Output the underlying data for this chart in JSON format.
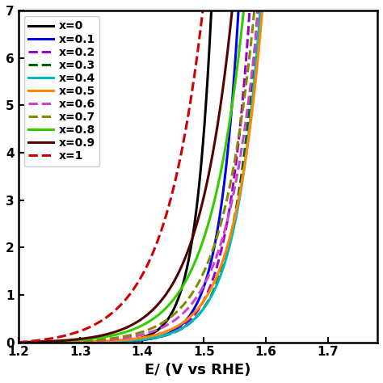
{
  "x_min": 1.2,
  "x_max": 1.78,
  "y_min": 0,
  "y_max": 7,
  "xlabel": "E/ (V vs RHE)",
  "series": [
    {
      "label": "x=0",
      "color": "#000000",
      "linestyle": "solid",
      "A": 5e-05,
      "B": 38,
      "E0": 1.2
    },
    {
      "label": "x=0.1",
      "color": "#0000EE",
      "linestyle": "solid",
      "A": 8e-05,
      "B": 32,
      "E0": 1.2
    },
    {
      "label": "x=0.2",
      "color": "#9900CC",
      "linestyle": "dashed",
      "A": 0.0002,
      "B": 28,
      "E0": 1.2
    },
    {
      "label": "x=0.3",
      "color": "#006600",
      "linestyle": "dashed",
      "A": 0.0003,
      "B": 26,
      "E0": 1.2
    },
    {
      "label": "x=0.4",
      "color": "#00BBBB",
      "linestyle": "solid",
      "A": 0.0004,
      "B": 25,
      "E0": 1.2
    },
    {
      "label": "x=0.5",
      "color": "#FF8800",
      "linestyle": "solid",
      "A": 0.0012,
      "B": 22,
      "E0": 1.2
    },
    {
      "label": "x=0.6",
      "color": "#CC44CC",
      "linestyle": "dashed",
      "A": 0.003,
      "B": 20,
      "E0": 1.2
    },
    {
      "label": "x=0.7",
      "color": "#888800",
      "linestyle": "dashed",
      "A": 0.005,
      "B": 19,
      "E0": 1.2
    },
    {
      "label": "x=0.8",
      "color": "#33CC00",
      "linestyle": "solid",
      "A": 0.01,
      "B": 18,
      "E0": 1.2
    },
    {
      "label": "x=0.9",
      "color": "#550000",
      "linestyle": "solid",
      "A": 0.014,
      "B": 18,
      "E0": 1.2
    },
    {
      "label": "x=1",
      "color": "#CC0000",
      "linestyle": "dashed",
      "A": 0.06,
      "B": 16,
      "E0": 1.2
    }
  ],
  "legend_fontsize": 10,
  "axis_fontsize": 13,
  "tick_fontsize": 11,
  "linewidth": 2.2
}
